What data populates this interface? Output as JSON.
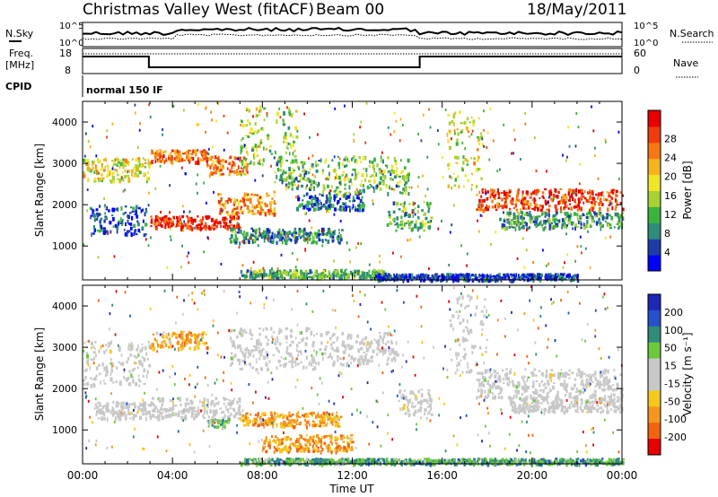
{
  "header": {
    "title": "Christmas Valley West (fitACF)",
    "beam": "Beam 00",
    "date": "18/May/2011"
  },
  "top_panels": {
    "nsky_label": "N.Sky",
    "nsearch_label": "N.Search",
    "noise_tick_top": "10^5",
    "noise_tick_bottom": "10^0",
    "freq_label_1": "Freq.",
    "freq_label_2": "[MHz]",
    "freq_ticks": [
      "18",
      "8"
    ],
    "nave_label": "Nave",
    "nave_ticks": [
      "60",
      "0"
    ],
    "cpid_label": "CPID",
    "cpid_text": "normal 150 IF"
  },
  "chart_data": [
    {
      "type": "heatmap",
      "name": "power",
      "ylabel": "Slant Range [km]",
      "xlabel": "",
      "x_ticks": [
        "00:00",
        "04:00",
        "08:00",
        "12:00",
        "16:00",
        "20:00",
        "00:00"
      ],
      "y_ticks": [
        1000,
        2000,
        3000,
        4000
      ],
      "xlim_hours": [
        0,
        24
      ],
      "ylim_km": [
        180,
        4500
      ],
      "colorbar": {
        "label": "Power [dB]",
        "ticks": [
          "4",
          "8",
          "12",
          "16",
          "20",
          "24",
          "28"
        ],
        "colors": [
          "#0000ff",
          "#1e3ca8",
          "#2f8c7a",
          "#3cb33c",
          "#a8d232",
          "#f0e628",
          "#f5b41e",
          "#f57814",
          "#ee3c0f",
          "#e60000"
        ]
      },
      "bands": [
        {
          "t0": 0.0,
          "t1": 3.0,
          "r0": 2600,
          "r1": 3150,
          "level": 0.55
        },
        {
          "t0": 0.3,
          "t1": 2.8,
          "r0": 1300,
          "r1": 2000,
          "level": 0.18
        },
        {
          "t0": 3.0,
          "t1": 5.5,
          "r0": 3050,
          "r1": 3350,
          "level": 0.78
        },
        {
          "t0": 5.5,
          "t1": 7.3,
          "r0": 2750,
          "r1": 3200,
          "level": 0.72
        },
        {
          "t0": 3.0,
          "t1": 7.0,
          "r0": 1450,
          "r1": 1750,
          "level": 0.9
        },
        {
          "t0": 6.0,
          "t1": 8.5,
          "r0": 1800,
          "r1": 2300,
          "level": 0.7
        },
        {
          "t0": 7.0,
          "t1": 9.5,
          "r0": 3000,
          "r1": 4400,
          "level": 0.45
        },
        {
          "t0": 8.5,
          "t1": 10.5,
          "r0": 2400,
          "r1": 3100,
          "level": 0.35
        },
        {
          "t0": 6.5,
          "t1": 11.5,
          "r0": 1100,
          "r1": 1450,
          "level": 0.25
        },
        {
          "t0": 9.5,
          "t1": 12.5,
          "r0": 1900,
          "r1": 2300,
          "level": 0.2
        },
        {
          "t0": 10.5,
          "t1": 14.5,
          "r0": 2300,
          "r1": 3200,
          "level": 0.4
        },
        {
          "t0": 13.5,
          "t1": 15.5,
          "r0": 1400,
          "r1": 2100,
          "level": 0.35
        },
        {
          "t0": 16.2,
          "t1": 17.8,
          "r0": 2400,
          "r1": 4300,
          "level": 0.55
        },
        {
          "t0": 17.5,
          "t1": 24.0,
          "r0": 1900,
          "r1": 2400,
          "level": 0.85
        },
        {
          "t0": 18.5,
          "t1": 24.0,
          "r0": 1450,
          "r1": 1850,
          "level": 0.3
        },
        {
          "t0": 7.0,
          "t1": 13.5,
          "r0": 250,
          "r1": 450,
          "level": 0.35
        },
        {
          "t0": 13.0,
          "t1": 22.0,
          "r0": 200,
          "r1": 350,
          "level": 0.15
        }
      ]
    },
    {
      "type": "heatmap",
      "name": "velocity",
      "ylabel": "Slant Range [km]",
      "xlabel": "Time UT",
      "x_ticks": [
        "00:00",
        "04:00",
        "08:00",
        "12:00",
        "16:00",
        "20:00",
        "00:00"
      ],
      "y_ticks": [
        1000,
        2000,
        3000,
        4000
      ],
      "xlim_hours": [
        0,
        24
      ],
      "ylim_km": [
        180,
        4500
      ],
      "colorbar": {
        "label": "Velocity [m s⁻¹]",
        "ticks": [
          "200",
          "100",
          "50",
          "15",
          "-15",
          "-50",
          "-100",
          "-200"
        ],
        "colors": [
          "#1e28b4",
          "#2850c8",
          "#2f8c7a",
          "#6ec83c",
          "#c8c8c8",
          "#c8c8c8",
          "#f5c81e",
          "#f5961e",
          "#f0640f",
          "#e60000"
        ]
      },
      "bands": [
        {
          "t0": 0.0,
          "t1": 3.0,
          "r0": 2100,
          "r1": 3200,
          "level": 0.5
        },
        {
          "t0": 0.5,
          "t1": 3.0,
          "r0": 1300,
          "r1": 1700,
          "level": 0.5
        },
        {
          "t0": 3.0,
          "t1": 5.5,
          "r0": 3000,
          "r1": 3400,
          "level": 0.7
        },
        {
          "t0": 3.0,
          "t1": 7.0,
          "r0": 1300,
          "r1": 1800,
          "level": 0.5
        },
        {
          "t0": 5.5,
          "t1": 6.5,
          "r0": 1100,
          "r1": 1300,
          "level": 0.33
        },
        {
          "t0": 6.5,
          "t1": 10.5,
          "r0": 2500,
          "r1": 3500,
          "level": 0.5
        },
        {
          "t0": 7.0,
          "t1": 11.5,
          "r0": 1100,
          "r1": 1450,
          "level": 0.72
        },
        {
          "t0": 8.0,
          "t1": 12.0,
          "r0": 500,
          "r1": 900,
          "level": 0.75
        },
        {
          "t0": 10.5,
          "t1": 14.0,
          "r0": 2600,
          "r1": 3400,
          "level": 0.5
        },
        {
          "t0": 14.0,
          "t1": 15.5,
          "r0": 1400,
          "r1": 2000,
          "level": 0.5
        },
        {
          "t0": 16.3,
          "t1": 18.0,
          "r0": 2400,
          "r1": 4300,
          "level": 0.5
        },
        {
          "t0": 17.5,
          "t1": 24.0,
          "r0": 1800,
          "r1": 2500,
          "level": 0.5
        },
        {
          "t0": 19.0,
          "t1": 24.0,
          "r0": 1450,
          "r1": 1800,
          "level": 0.5
        },
        {
          "t0": 7.0,
          "t1": 24.0,
          "r0": 200,
          "r1": 330,
          "level": 0.3
        }
      ]
    }
  ]
}
